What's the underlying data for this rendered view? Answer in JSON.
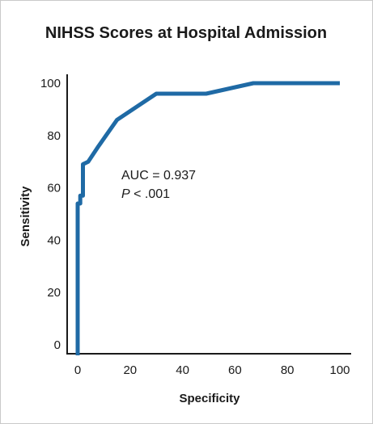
{
  "chart_data": {
    "type": "line",
    "title": "NIHSS Scores at Hospital Admission",
    "xlabel": "Specificity",
    "ylabel": "Sensitivity",
    "xlim": [
      0,
      100
    ],
    "ylim": [
      0,
      100
    ],
    "xticks": [
      0,
      20,
      40,
      60,
      80,
      100
    ],
    "yticks": [
      0,
      20,
      40,
      60,
      80,
      100
    ],
    "xtick_labels": [
      "0",
      "20",
      "40",
      "60",
      "80",
      "100"
    ],
    "ytick_labels": [
      "0",
      "20",
      "40",
      "60",
      "80",
      "100"
    ],
    "grid": false,
    "series": [
      {
        "color": "#1f6aa5",
        "points": [
          [
            0,
            -4
          ],
          [
            0,
            54
          ],
          [
            1,
            54
          ],
          [
            1,
            57
          ],
          [
            2,
            57
          ],
          [
            2,
            69
          ],
          [
            4,
            70
          ],
          [
            8,
            76
          ],
          [
            15,
            86
          ],
          [
            30,
            96
          ],
          [
            49,
            96
          ],
          [
            67,
            100
          ],
          [
            100,
            100
          ]
        ]
      }
    ],
    "annotation": {
      "line1": "AUC = 0.937",
      "line2_italic": "P",
      "line2_rest": " < .001"
    }
  },
  "colors": {
    "curve": "#1f6aa5",
    "axis": "#1a1a1a",
    "frame": "#c9c9c9"
  }
}
